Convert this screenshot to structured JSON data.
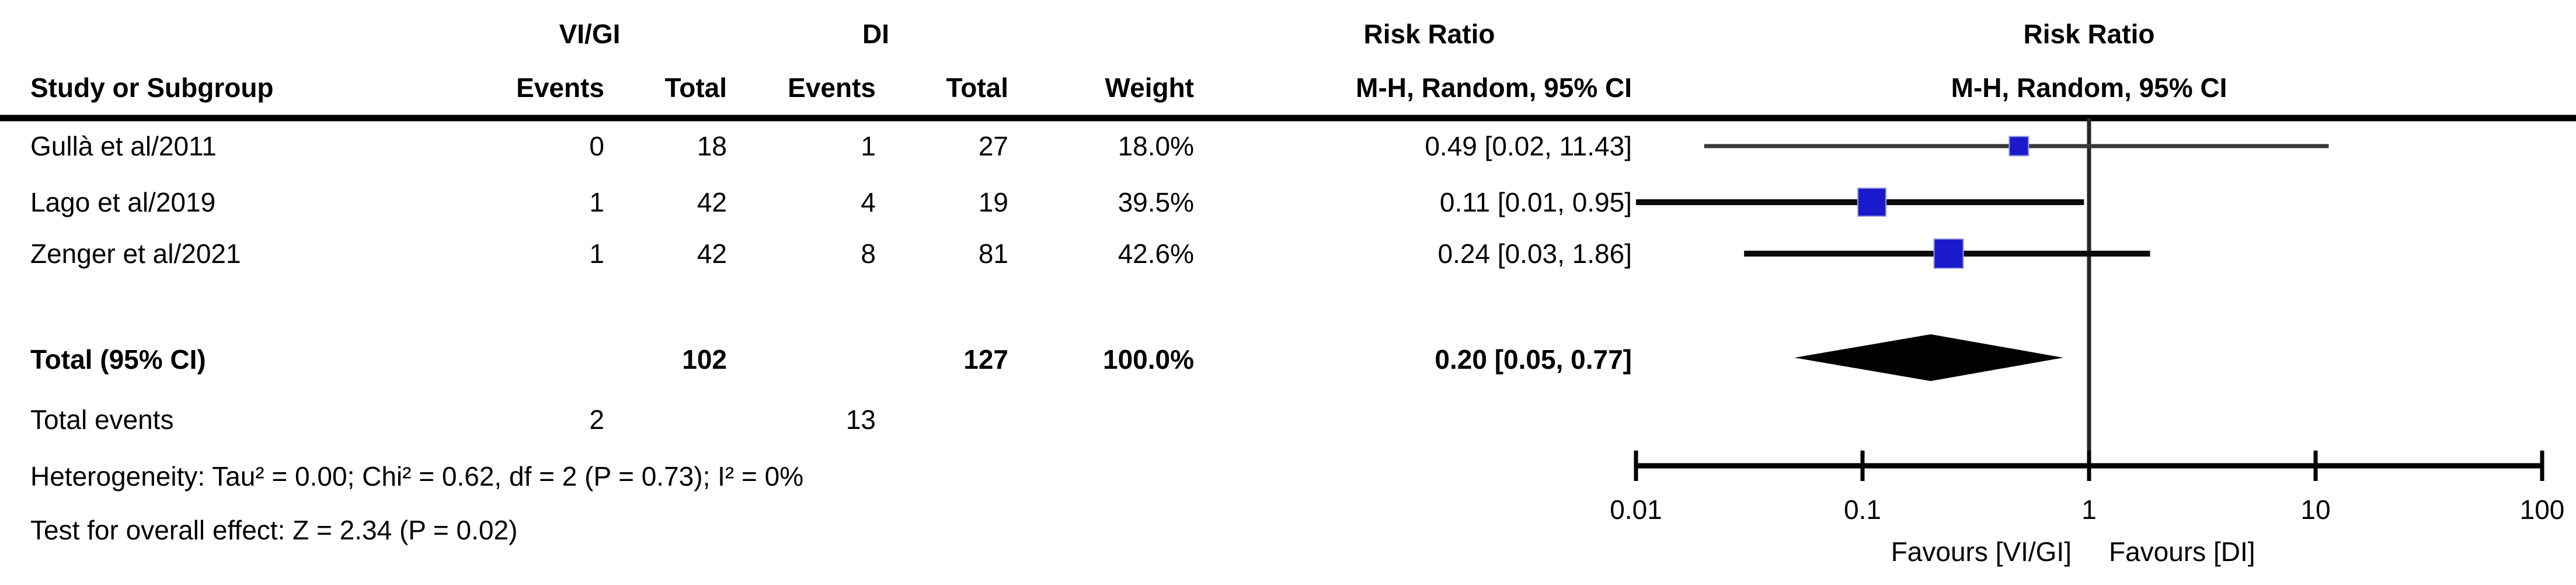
{
  "table": {
    "headers": {
      "group_left": "VI/GI",
      "group_right": "DI",
      "risk_ratio": "Risk Ratio",
      "study": "Study or Subgroup",
      "events": "Events",
      "total": "Total",
      "weight": "Weight",
      "method": "M-H, Random, 95% CI"
    },
    "rows": [
      {
        "name": "Gullà et al/2011",
        "e1": "0",
        "t1": "18",
        "e2": "1",
        "t2": "27",
        "weight": "18.0%",
        "ci": "0.49 [0.02, 11.43]"
      },
      {
        "name": "Lago et al/2019",
        "e1": "1",
        "t1": "42",
        "e2": "4",
        "t2": "19",
        "weight": "39.5%",
        "ci": "0.11 [0.01, 0.95]"
      },
      {
        "name": "Zenger et al/2021",
        "e1": "1",
        "t1": "42",
        "e2": "8",
        "t2": "81",
        "weight": "42.6%",
        "ci": "0.24 [0.03, 1.86]"
      }
    ],
    "total_row": {
      "label": "Total (95% CI)",
      "t1": "102",
      "t2": "127",
      "weight": "100.0%",
      "ci": "0.20 [0.05, 0.77]"
    },
    "total_events": {
      "label": "Total events",
      "e1": "2",
      "e2": "13"
    },
    "heterogeneity": "Heterogeneity: Tau² = 0.00; Chi² = 0.62, df = 2 (P = 0.73); I² = 0%",
    "overall_effect": "Test for overall effect: Z = 2.34 (P = 0.02)"
  },
  "chart_data": {
    "type": "forest",
    "x_scale": "log10",
    "effect_measure": "Risk Ratio",
    "method": "M-H, Random, 95% CI",
    "tick_labels": [
      "0.01",
      "0.1",
      "1",
      "10",
      "100"
    ],
    "null_line": 1,
    "studies": [
      {
        "label": "Gullà et al/2011",
        "rr": 0.49,
        "low": 0.02,
        "high": 11.43,
        "weight": 18.0
      },
      {
        "label": "Lago et al/2019",
        "rr": 0.11,
        "low": 0.01,
        "high": 0.95,
        "weight": 39.5
      },
      {
        "label": "Zenger et al/2021",
        "rr": 0.24,
        "low": 0.03,
        "high": 1.86,
        "weight": 42.6
      }
    ],
    "total": {
      "rr": 0.2,
      "low": 0.05,
      "high": 0.77
    },
    "favours_left": "Favours [VI/GI]",
    "favours_right": "Favours [DI]",
    "square_color": "#1a1acc",
    "square_border_color": "#9a9ae6",
    "diamond_color": "#000000",
    "line_color": "#0a0a0a"
  }
}
